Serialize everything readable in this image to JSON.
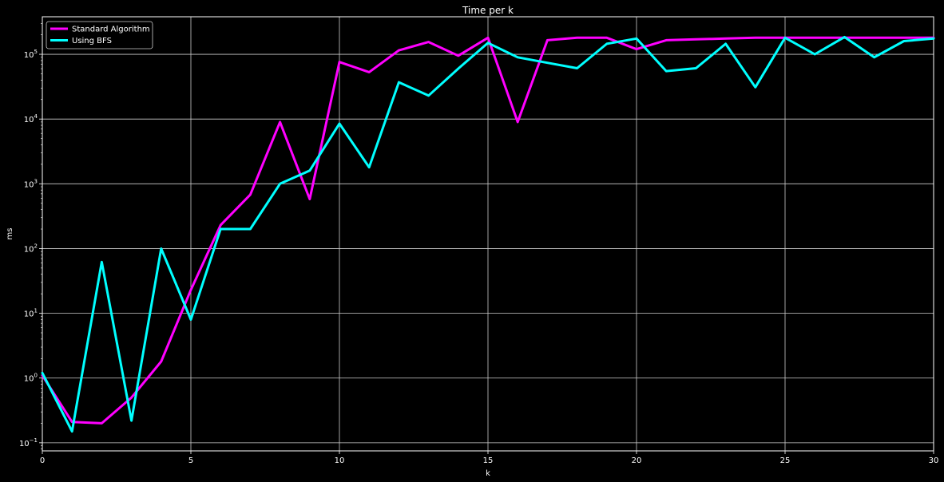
{
  "chart_data": {
    "type": "line",
    "title": "Time per k",
    "xlabel": "k",
    "ylabel": "ms",
    "yscale": "log",
    "xlim": [
      0,
      30
    ],
    "ylim": [
      0.075,
      380000
    ],
    "grid": true,
    "legend_position": "top-left",
    "x_ticks": [
      0,
      5,
      10,
      15,
      20,
      25,
      30
    ],
    "y_ticks": [
      0.1,
      1,
      10,
      100,
      1000,
      10000,
      100000
    ],
    "y_tick_labels": [
      {
        "base": "10",
        "exp": "−1"
      },
      {
        "base": "10",
        "exp": "0"
      },
      {
        "base": "10",
        "exp": "1"
      },
      {
        "base": "10",
        "exp": "2"
      },
      {
        "base": "10",
        "exp": "3"
      },
      {
        "base": "10",
        "exp": "4"
      },
      {
        "base": "10",
        "exp": "5"
      }
    ],
    "x": [
      0,
      1,
      2,
      3,
      4,
      5,
      6,
      7,
      8,
      9,
      10,
      11,
      12,
      13,
      14,
      15,
      16,
      17,
      18,
      19,
      20,
      21,
      22,
      23,
      24,
      25,
      26,
      27,
      28,
      29,
      30
    ],
    "series": [
      {
        "name": "Standard Algorithm",
        "color": "#ff00ff",
        "values": [
          1.1,
          0.21,
          0.2,
          0.5,
          1.8,
          23,
          230,
          680,
          9000,
          580,
          76000,
          53000,
          115000,
          155000,
          95000,
          180000,
          9000,
          165000,
          180000,
          180000,
          120000,
          165000,
          170000,
          175000,
          180000,
          180000,
          180000,
          180000,
          180000,
          180000,
          180000
        ]
      },
      {
        "name": "Using BFS",
        "color": "#00ffff",
        "values": [
          1.2,
          0.15,
          62,
          0.22,
          100,
          8,
          200,
          200,
          1000,
          1600,
          8500,
          1800,
          37000,
          23000,
          60000,
          150000,
          90000,
          74000,
          61000,
          145000,
          175000,
          55000,
          61000,
          145000,
          31000,
          180000,
          100000,
          185000,
          90000,
          160000,
          175000
        ]
      }
    ]
  }
}
